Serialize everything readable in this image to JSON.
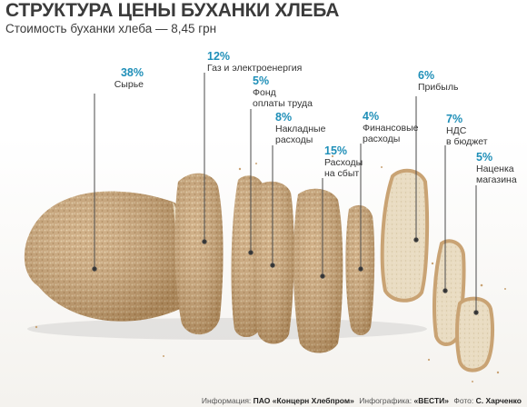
{
  "title": "СТРУКТУРА ЦЕНЫ БУХАНКИ ХЛЕБА",
  "subtitle": "Стоимость буханки хлеба — 8,45 грн",
  "labels": [
    {
      "pct": "38%",
      "lines": [
        "Сырье"
      ]
    },
    {
      "pct": "12%",
      "lines": [
        "Газ и электроенергия"
      ]
    },
    {
      "pct": "5%",
      "lines": [
        "Фонд",
        "оплаты труда"
      ]
    },
    {
      "pct": "8%",
      "lines": [
        "Накладные",
        "расходы"
      ]
    },
    {
      "pct": "15%",
      "lines": [
        "Расходы",
        "на сбыт"
      ]
    },
    {
      "pct": "4%",
      "lines": [
        "Финансовые",
        "расходы"
      ]
    },
    {
      "pct": "6%",
      "lines": [
        "Прибыль"
      ]
    },
    {
      "pct": "7%",
      "lines": [
        "НДС",
        "в бюджет"
      ]
    },
    {
      "pct": "5%",
      "lines": [
        "Наценка",
        "магазина"
      ]
    }
  ],
  "footer": {
    "info_label": "Информация:",
    "info_value": "ПАО «Концерн Хлебпром»",
    "graphics_label": "Инфографика:",
    "graphics_value": "«ВЕСТИ»",
    "photo_label": "Фото:",
    "photo_value": "С. Харченко"
  },
  "colors": {
    "accent": "#1f8fb8",
    "crust": "#c9a374",
    "crumb": "#e9dcc2"
  }
}
